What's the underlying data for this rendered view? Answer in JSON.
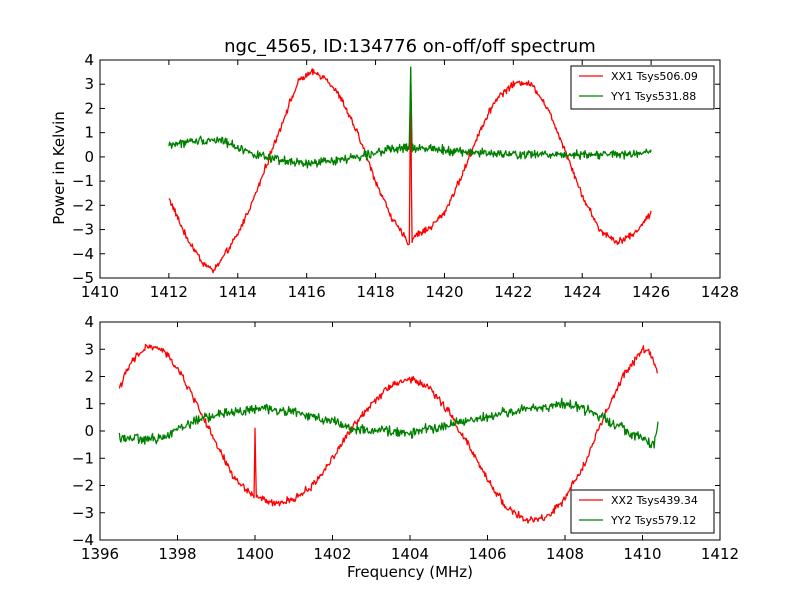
{
  "figure": {
    "title": "ngc_4565, ID:134776 on-off/off spectrum",
    "xlabel": "Frequency (MHz)",
    "ylabel": "Power in Kelvin"
  },
  "chart_data": [
    {
      "type": "line",
      "title": "ngc_4565, ID:134776 on-off/off spectrum",
      "xlabel": "",
      "ylabel": "Power in Kelvin",
      "xlim": [
        1410,
        1428
      ],
      "ylim": [
        -5,
        4
      ],
      "xticks": [
        1410,
        1412,
        1414,
        1416,
        1418,
        1420,
        1422,
        1424,
        1426,
        1428
      ],
      "yticks": [
        -5,
        -4,
        -3,
        -2,
        -1,
        0,
        1,
        2,
        3,
        4
      ],
      "grid": false,
      "legend": "top-right",
      "series": [
        {
          "name": "XX1 Tsys506.09",
          "color": "#ff0000",
          "x": [
            1412.0,
            1412.5,
            1413.0,
            1413.3,
            1413.6,
            1414.0,
            1414.5,
            1415.0,
            1415.5,
            1415.8,
            1416.2,
            1416.6,
            1417.0,
            1417.5,
            1418.0,
            1418.5,
            1418.98,
            1419.02,
            1419.05,
            1419.1,
            1419.6,
            1420.0,
            1420.5,
            1421.0,
            1421.5,
            1422.0,
            1422.3,
            1422.6,
            1423.0,
            1423.5,
            1424.0,
            1424.5,
            1425.0,
            1425.5,
            1426.0
          ],
          "y": [
            -1.7,
            -3.3,
            -4.4,
            -4.7,
            -4.1,
            -3.2,
            -1.6,
            0.3,
            2.2,
            3.2,
            3.5,
            3.2,
            2.4,
            0.9,
            -1.0,
            -2.6,
            -3.6,
            3.6,
            -3.5,
            -3.3,
            -2.9,
            -2.3,
            -0.8,
            1.0,
            2.4,
            3.0,
            3.1,
            2.9,
            2.0,
            0.3,
            -1.6,
            -3.0,
            -3.5,
            -3.2,
            -2.3
          ]
        },
        {
          "name": "YY1 Tsys531.88",
          "color": "#008000",
          "x": [
            1412.0,
            1412.5,
            1413.0,
            1413.5,
            1414.0,
            1414.5,
            1415.0,
            1415.5,
            1416.0,
            1416.5,
            1417.0,
            1417.5,
            1418.0,
            1418.5,
            1418.98,
            1419.02,
            1419.06,
            1419.5,
            1420.0,
            1420.5,
            1421.0,
            1421.5,
            1422.0,
            1422.5,
            1423.0,
            1423.5,
            1424.0,
            1424.5,
            1425.0,
            1425.5,
            1426.0
          ],
          "y": [
            0.5,
            0.6,
            0.7,
            0.7,
            0.4,
            0.1,
            -0.1,
            -0.2,
            -0.3,
            -0.2,
            -0.1,
            0.0,
            0.2,
            0.3,
            0.4,
            3.7,
            0.3,
            0.4,
            0.3,
            0.2,
            0.2,
            0.1,
            0.1,
            0.1,
            0.1,
            0.1,
            0.1,
            0.1,
            0.1,
            0.1,
            0.2
          ]
        }
      ]
    },
    {
      "type": "line",
      "title": "",
      "xlabel": "Frequency (MHz)",
      "ylabel": "",
      "xlim": [
        1396,
        1412
      ],
      "ylim": [
        -4,
        4
      ],
      "xticks": [
        1396,
        1398,
        1400,
        1402,
        1404,
        1406,
        1408,
        1410,
        1412
      ],
      "yticks": [
        -4,
        -3,
        -2,
        -1,
        0,
        1,
        2,
        3,
        4
      ],
      "grid": false,
      "legend": "bottom-right",
      "series": [
        {
          "name": "XX2 Tsys439.34",
          "color": "#ff0000",
          "x": [
            1396.5,
            1396.8,
            1397.2,
            1397.6,
            1398.0,
            1398.5,
            1399.0,
            1399.5,
            1399.98,
            1400.0,
            1400.03,
            1400.5,
            1401.0,
            1401.5,
            1402.0,
            1402.5,
            1403.0,
            1403.5,
            1404.0,
            1404.5,
            1405.0,
            1405.5,
            1406.0,
            1406.5,
            1407.0,
            1407.5,
            1408.0,
            1408.5,
            1409.0,
            1409.5,
            1410.0,
            1410.2,
            1410.4
          ],
          "y": [
            1.6,
            2.5,
            3.1,
            3.0,
            2.3,
            1.0,
            -0.5,
            -1.8,
            -2.4,
            0.1,
            -2.4,
            -2.7,
            -2.5,
            -2.0,
            -1.0,
            0.1,
            1.0,
            1.7,
            1.9,
            1.6,
            0.7,
            -0.5,
            -1.8,
            -2.8,
            -3.3,
            -3.2,
            -2.5,
            -1.2,
            0.5,
            2.0,
            3.0,
            2.9,
            2.1
          ]
        },
        {
          "name": "YY2 Tsys579.12",
          "color": "#008000",
          "x": [
            1396.5,
            1397.0,
            1397.5,
            1398.0,
            1398.5,
            1399.0,
            1399.5,
            1400.0,
            1400.5,
            1401.0,
            1401.5,
            1402.0,
            1402.5,
            1403.0,
            1403.5,
            1404.0,
            1404.5,
            1405.0,
            1405.5,
            1406.0,
            1406.5,
            1407.0,
            1407.5,
            1408.0,
            1408.5,
            1409.0,
            1409.5,
            1410.0,
            1410.3,
            1410.4
          ],
          "y": [
            -0.2,
            -0.3,
            -0.3,
            0.1,
            0.4,
            0.6,
            0.7,
            0.8,
            0.8,
            0.7,
            0.5,
            0.4,
            0.1,
            0.0,
            0.0,
            -0.1,
            0.1,
            0.2,
            0.4,
            0.5,
            0.7,
            0.8,
            0.9,
            1.0,
            0.8,
            0.5,
            0.1,
            -0.3,
            -0.5,
            0.3
          ]
        }
      ]
    }
  ]
}
